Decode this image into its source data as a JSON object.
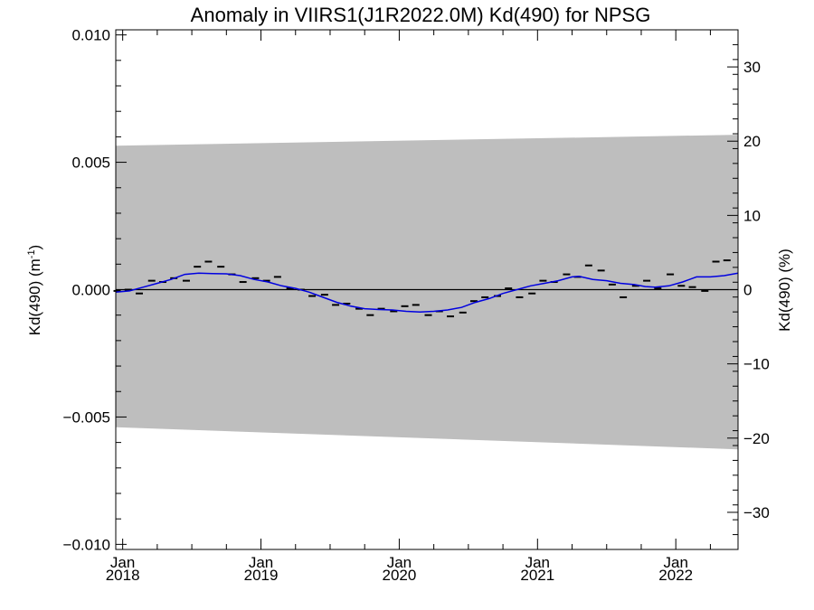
{
  "chart_data": {
    "type": "line",
    "title": "Anomaly in VIIRS1(J1R2022.0M) Kd(490) for NPSG",
    "ylabel_left": "Kd(490) (m",
    "ylabel_left_sup": "-1",
    "ylabel_left_close": ")",
    "ylabel_right": "Kd(490) (%)",
    "xlim": [
      2017.95,
      2022.45
    ],
    "ylim_left": [
      -0.0102,
      0.0102
    ],
    "ylim_right": [
      -35,
      35
    ],
    "x_tick_labels": [
      {
        "month": "Jan",
        "year": "2018",
        "x": 2018.0
      },
      {
        "month": "Jan",
        "year": "2019",
        "x": 2019.0
      },
      {
        "month": "Jan",
        "year": "2020",
        "x": 2020.0
      },
      {
        "month": "Jan",
        "year": "2021",
        "x": 2021.0
      },
      {
        "month": "Jan",
        "year": "2022",
        "x": 2022.0
      }
    ],
    "y_left_ticks": [
      {
        "value": 0.01,
        "label": "0.010"
      },
      {
        "value": 0.005,
        "label": "0.005"
      },
      {
        "value": 0.0,
        "label": "0.000"
      },
      {
        "value": -0.005,
        "label": "−0.005"
      },
      {
        "value": -0.01,
        "label": "−0.010"
      }
    ],
    "y_right_ticks": [
      {
        "value": 30,
        "label": "30"
      },
      {
        "value": 20,
        "label": "20"
      },
      {
        "value": 10,
        "label": "10"
      },
      {
        "value": 0,
        "label": "0"
      },
      {
        "value": -10,
        "label": "−10"
      },
      {
        "value": -20,
        "label": "−20"
      },
      {
        "value": -30,
        "label": "−30"
      }
    ],
    "band": {
      "upper": [
        [
          2017.95,
          0.00565
        ],
        [
          2022.45,
          0.00608
        ]
      ],
      "lower": [
        [
          2017.95,
          -0.0054
        ],
        [
          2022.45,
          -0.00627
        ]
      ],
      "color": "#bebebe"
    },
    "zero_line": 0,
    "monthly_anomaly": {
      "color": "#000000",
      "points": [
        [
          2017.96,
          -5e-05
        ],
        [
          2018.04,
          0.0
        ],
        [
          2018.12,
          -0.00015
        ],
        [
          2018.21,
          0.00035
        ],
        [
          2018.29,
          0.0003
        ],
        [
          2018.37,
          0.00045
        ],
        [
          2018.46,
          0.00035
        ],
        [
          2018.54,
          0.0009
        ],
        [
          2018.62,
          0.0011
        ],
        [
          2018.71,
          0.0009
        ],
        [
          2018.79,
          0.0006
        ],
        [
          2018.87,
          0.0003
        ],
        [
          2018.96,
          0.00045
        ],
        [
          2019.04,
          0.00035
        ],
        [
          2019.12,
          0.0005
        ],
        [
          2019.21,
          5e-05
        ],
        [
          2019.29,
          0.0
        ],
        [
          2019.37,
          -0.00025
        ],
        [
          2019.46,
          -0.0002
        ],
        [
          2019.54,
          -0.0006
        ],
        [
          2019.62,
          -0.00055
        ],
        [
          2019.71,
          -0.00075
        ],
        [
          2019.79,
          -0.001
        ],
        [
          2019.87,
          -0.00075
        ],
        [
          2019.96,
          -0.00085
        ],
        [
          2020.04,
          -0.00065
        ],
        [
          2020.12,
          -0.0006
        ],
        [
          2020.21,
          -0.001
        ],
        [
          2020.29,
          -0.00085
        ],
        [
          2020.37,
          -0.00105
        ],
        [
          2020.46,
          -0.0009
        ],
        [
          2020.54,
          -0.00045
        ],
        [
          2020.62,
          -0.0003
        ],
        [
          2020.71,
          -0.00025
        ],
        [
          2020.79,
          5e-05
        ],
        [
          2020.87,
          -0.0003
        ],
        [
          2020.96,
          -0.00015
        ],
        [
          2021.04,
          0.00035
        ],
        [
          2021.12,
          0.0003
        ],
        [
          2021.21,
          0.0006
        ],
        [
          2021.29,
          0.0005
        ],
        [
          2021.37,
          0.00095
        ],
        [
          2021.46,
          0.00075
        ],
        [
          2021.54,
          0.0002
        ],
        [
          2021.62,
          -0.0003
        ],
        [
          2021.71,
          0.00015
        ],
        [
          2021.79,
          0.00035
        ],
        [
          2021.87,
          5e-05
        ],
        [
          2021.96,
          0.0006
        ],
        [
          2022.04,
          0.00015
        ],
        [
          2022.12,
          0.0001
        ],
        [
          2022.21,
          -5e-05
        ],
        [
          2022.29,
          0.0011
        ],
        [
          2022.37,
          0.00115
        ]
      ]
    },
    "smoothed_anomaly": {
      "color": "#0000e0",
      "points": [
        [
          2017.95,
          -0.0001
        ],
        [
          2018.05,
          -5e-05
        ],
        [
          2018.15,
          0.0001
        ],
        [
          2018.25,
          0.00025
        ],
        [
          2018.35,
          0.0004
        ],
        [
          2018.45,
          0.0006
        ],
        [
          2018.55,
          0.00065
        ],
        [
          2018.65,
          0.00063
        ],
        [
          2018.75,
          0.00062
        ],
        [
          2018.85,
          0.00055
        ],
        [
          2018.95,
          0.0004
        ],
        [
          2019.05,
          0.0003
        ],
        [
          2019.15,
          0.00015
        ],
        [
          2019.25,
          5e-05
        ],
        [
          2019.35,
          -0.0001
        ],
        [
          2019.45,
          -0.0003
        ],
        [
          2019.55,
          -0.0005
        ],
        [
          2019.65,
          -0.00065
        ],
        [
          2019.75,
          -0.00075
        ],
        [
          2019.85,
          -0.00078
        ],
        [
          2019.95,
          -0.0008
        ],
        [
          2020.05,
          -0.00085
        ],
        [
          2020.15,
          -0.00088
        ],
        [
          2020.25,
          -0.00085
        ],
        [
          2020.35,
          -0.0008
        ],
        [
          2020.45,
          -0.0007
        ],
        [
          2020.55,
          -0.0005
        ],
        [
          2020.65,
          -0.00035
        ],
        [
          2020.75,
          -0.00015
        ],
        [
          2020.85,
          0.0
        ],
        [
          2020.95,
          0.00015
        ],
        [
          2021.05,
          0.00025
        ],
        [
          2021.15,
          0.00035
        ],
        [
          2021.25,
          0.0005
        ],
        [
          2021.3,
          0.00052
        ],
        [
          2021.4,
          0.0004
        ],
        [
          2021.5,
          0.00035
        ],
        [
          2021.6,
          0.00025
        ],
        [
          2021.7,
          0.0002
        ],
        [
          2021.78,
          0.00012
        ],
        [
          2021.85,
          0.0001
        ],
        [
          2021.95,
          0.00015
        ],
        [
          2022.05,
          0.0003
        ],
        [
          2022.15,
          0.0005
        ],
        [
          2022.25,
          0.0005
        ],
        [
          2022.35,
          0.00055
        ],
        [
          2022.45,
          0.00065
        ]
      ]
    }
  }
}
